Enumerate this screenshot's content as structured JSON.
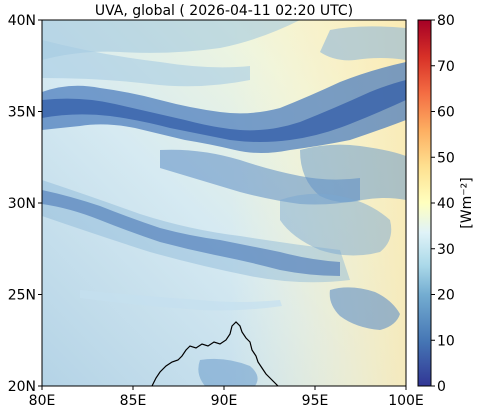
{
  "title": "UVA, global ( 2026-04-11 02:20 UTC)",
  "map": {
    "x_ticks": [
      "80E",
      "85E",
      "90E",
      "95E",
      "100E"
    ],
    "y_ticks": [
      "40N",
      "35N",
      "30N",
      "25N",
      "20N"
    ],
    "lon_range": [
      80,
      100
    ],
    "lat_range": [
      20,
      40
    ]
  },
  "colorbar": {
    "label": "[Wm⁻²]",
    "ticks": [
      "80",
      "70",
      "60",
      "50",
      "40",
      "30",
      "20",
      "10",
      "0"
    ],
    "range": [
      0,
      80
    ],
    "colors": [
      "#2b3a8f",
      "#4575b4",
      "#74add1",
      "#abd9e9",
      "#e0f3f8",
      "#fee090",
      "#fdae61",
      "#f46d43",
      "#d73027",
      "#a50026"
    ]
  }
}
